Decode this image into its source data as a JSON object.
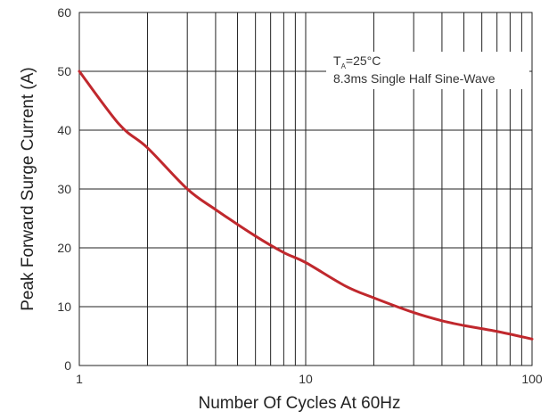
{
  "chart_data": {
    "type": "line",
    "title": "",
    "xlabel": "Number Of Cycles At 60Hz",
    "ylabel": "Peak Forward Surge Current (A)",
    "xscale": "log",
    "xlim": [
      1,
      100
    ],
    "ylim": [
      0,
      60
    ],
    "x_tick_labels": [
      "1",
      "10",
      "100"
    ],
    "x_tick_values": [
      1,
      10,
      100
    ],
    "y_tick_labels": [
      "0",
      "10",
      "20",
      "30",
      "40",
      "50",
      "60"
    ],
    "y_tick_values": [
      0,
      10,
      20,
      30,
      40,
      50,
      60
    ],
    "grid": true,
    "annotation": {
      "line1_main": "T",
      "line1_sub": "A",
      "line1_rest": "=25°C",
      "line2": "8.3ms Single Half Sine-Wave"
    },
    "series": [
      {
        "color": "#c0282d",
        "x": [
          1,
          1.5,
          2,
          3,
          4,
          6,
          8,
          10,
          15,
          20,
          30,
          40,
          50,
          70,
          100
        ],
        "y": [
          50,
          41,
          37,
          30,
          26.5,
          22,
          19.2,
          17.5,
          13.5,
          11.5,
          9,
          7.6,
          6.8,
          5.8,
          4.5
        ]
      }
    ]
  }
}
